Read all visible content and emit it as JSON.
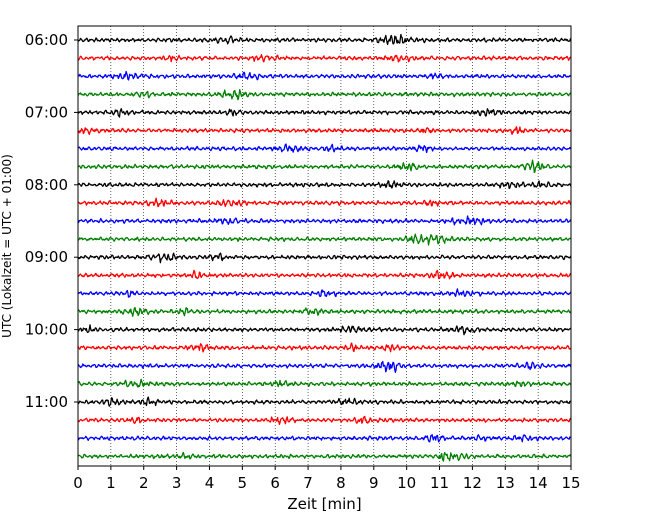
{
  "chart_data": {
    "type": "line",
    "subtype": "helicorder",
    "xlabel": "Zeit  [min]",
    "ylabel": "UTC (Lokalzeit = UTC + 01:00)",
    "xlim": [
      0,
      15
    ],
    "x_ticks": [
      "0",
      "1",
      "2",
      "3",
      "4",
      "5",
      "6",
      "7",
      "8",
      "9",
      "10",
      "11",
      "12",
      "13",
      "14",
      "15"
    ],
    "y_tick_labels": [
      "06:00",
      "07:00",
      "08:00",
      "09:00",
      "10:00",
      "11:00"
    ],
    "grid": "vertical dotted",
    "trace_colors": [
      "#000000",
      "#ff0000",
      "#0000ff",
      "#008000"
    ],
    "traces": [
      {
        "start": "06:00",
        "color": "#000000"
      },
      {
        "start": "06:15",
        "color": "#ff0000"
      },
      {
        "start": "06:30",
        "color": "#0000ff"
      },
      {
        "start": "06:45",
        "color": "#008000"
      },
      {
        "start": "07:00",
        "color": "#000000"
      },
      {
        "start": "07:15",
        "color": "#ff0000"
      },
      {
        "start": "07:30",
        "color": "#0000ff"
      },
      {
        "start": "07:45",
        "color": "#008000"
      },
      {
        "start": "08:00",
        "color": "#000000"
      },
      {
        "start": "08:15",
        "color": "#ff0000"
      },
      {
        "start": "08:30",
        "color": "#0000ff"
      },
      {
        "start": "08:45",
        "color": "#008000"
      },
      {
        "start": "09:00",
        "color": "#000000"
      },
      {
        "start": "09:15",
        "color": "#ff0000"
      },
      {
        "start": "09:30",
        "color": "#0000ff"
      },
      {
        "start": "09:45",
        "color": "#008000"
      },
      {
        "start": "10:00",
        "color": "#000000"
      },
      {
        "start": "10:15",
        "color": "#ff0000"
      },
      {
        "start": "10:30",
        "color": "#0000ff"
      },
      {
        "start": "10:45",
        "color": "#008000"
      },
      {
        "start": "11:00",
        "color": "#000000"
      },
      {
        "start": "11:15",
        "color": "#ff0000"
      },
      {
        "start": "11:30",
        "color": "#0000ff"
      },
      {
        "start": "11:45",
        "color": "#008000"
      }
    ]
  }
}
